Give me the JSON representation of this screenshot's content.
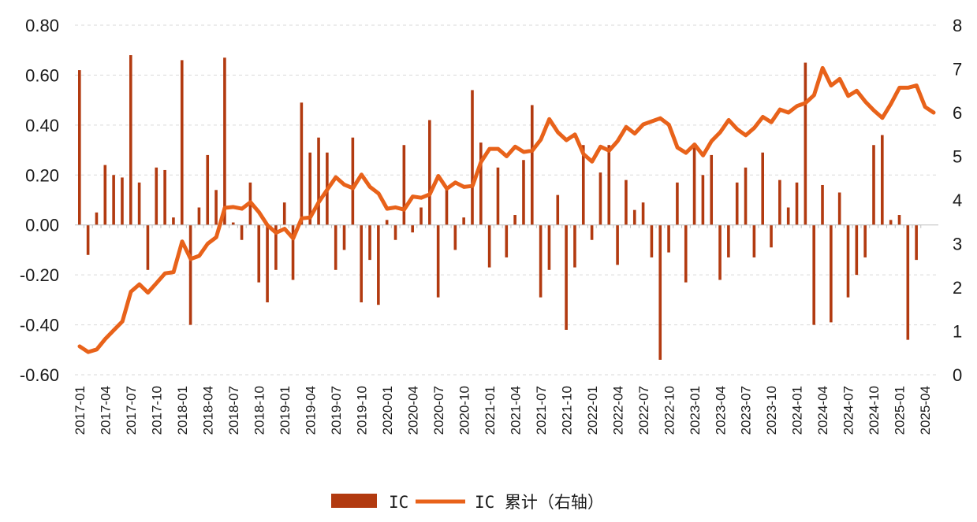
{
  "chart_data": {
    "type": "bar+line",
    "title": "",
    "colors": {
      "bar": "#B23A10",
      "line": "#E8621A",
      "grid": "#d9d9d9"
    },
    "y_left": {
      "ylim": [
        -0.6,
        0.8
      ],
      "ticks": [
        "0.80",
        "0.60",
        "0.40",
        "0.20",
        "0.00",
        "-0.20",
        "-0.40",
        "-0.60"
      ]
    },
    "y_right": {
      "ylim": [
        0,
        8
      ],
      "ticks": [
        "8",
        "7",
        "6",
        "5",
        "4",
        "3",
        "2",
        "1",
        "0"
      ]
    },
    "x_tick_labels": [
      "2017-01",
      "2017-04",
      "2017-07",
      "2017-10",
      "2018-01",
      "2018-04",
      "2018-07",
      "2018-10",
      "2019-01",
      "2019-04",
      "2019-07",
      "2019-10",
      "2020-01",
      "2020-04",
      "2020-07",
      "2020-10",
      "2021-01",
      "2021-04",
      "2021-07",
      "2021-10",
      "2022-01",
      "2022-04",
      "2022-07",
      "2022-10",
      "2023-01",
      "2023-04",
      "2023-07",
      "2023-10",
      "2024-01",
      "2024-04",
      "2024-07",
      "2024-10",
      "2025-01",
      "2025-04"
    ],
    "series": [
      {
        "name": "IC",
        "kind": "bar",
        "axis": "left",
        "values": [
          0.62,
          -0.12,
          0.05,
          0.24,
          0.2,
          0.19,
          0.68,
          0.17,
          -0.18,
          0.23,
          0.22,
          0.03,
          0.66,
          -0.4,
          0.07,
          0.28,
          0.14,
          0.67,
          0.01,
          -0.06,
          0.17,
          -0.23,
          -0.31,
          -0.18,
          0.09,
          -0.22,
          0.49,
          0.29,
          0.35,
          0.29,
          -0.18,
          -0.1,
          0.35,
          -0.31,
          -0.14,
          -0.32,
          0.02,
          -0.06,
          0.32,
          -0.03,
          0.07,
          0.42,
          -0.29,
          0.15,
          -0.1,
          0.03,
          0.54,
          0.33,
          -0.17,
          0.23,
          -0.13,
          0.04,
          0.26,
          0.48,
          -0.29,
          -0.18,
          0.12,
          -0.42,
          -0.17,
          0.32,
          -0.06,
          0.21,
          0.32,
          -0.16,
          0.18,
          0.06,
          0.09,
          -0.13,
          -0.54,
          -0.11,
          0.17,
          -0.23,
          0.31,
          0.2,
          0.28,
          -0.22,
          -0.13,
          0.17,
          0.23,
          -0.13,
          0.29,
          -0.09,
          0.18,
          0.07,
          0.17,
          0.65,
          -0.4,
          0.16,
          -0.39,
          0.13,
          -0.29,
          -0.2,
          -0.13,
          0.32,
          0.36,
          0.02,
          0.04,
          -0.46,
          -0.14
        ]
      },
      {
        "name": "IC 累计（右轴）",
        "kind": "line",
        "axis": "right",
        "values": [
          0.65,
          0.52,
          0.58,
          0.82,
          1.02,
          1.22,
          1.9,
          2.07,
          1.88,
          2.1,
          2.32,
          2.35,
          3.05,
          2.65,
          2.72,
          3.0,
          3.15,
          3.82,
          3.84,
          3.8,
          3.95,
          3.72,
          3.42,
          3.25,
          3.34,
          3.12,
          3.58,
          3.6,
          3.95,
          4.24,
          4.52,
          4.35,
          4.27,
          4.58,
          4.3,
          4.15,
          3.8,
          3.83,
          3.78,
          4.08,
          4.05,
          4.13,
          4.55,
          4.26,
          4.4,
          4.3,
          4.32,
          4.87,
          5.17,
          5.17,
          5.0,
          5.22,
          5.1,
          5.13,
          5.38,
          5.85,
          5.55,
          5.37,
          5.5,
          5.05,
          4.88,
          5.22,
          5.13,
          5.35,
          5.67,
          5.52,
          5.73,
          5.8,
          5.87,
          5.72,
          5.2,
          5.08,
          5.27,
          5.02,
          5.35,
          5.55,
          5.83,
          5.62,
          5.48,
          5.65,
          5.9,
          5.78,
          6.07,
          6.0,
          6.15,
          6.22,
          6.4,
          7.02,
          6.62,
          6.77,
          6.38,
          6.5,
          6.25,
          6.05,
          5.88,
          6.2,
          6.57,
          6.57,
          6.62,
          6.13,
          6.0
        ]
      }
    ],
    "legend": {
      "position": "bottom-center",
      "labels": [
        "IC",
        "IC 累计（右轴）"
      ]
    },
    "grid": "horizontal dashed"
  }
}
